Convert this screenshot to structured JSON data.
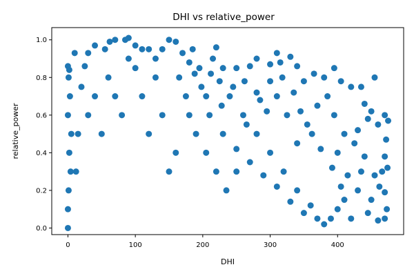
{
  "chart_data": {
    "type": "scatter",
    "title": "DHI vs relative_power",
    "xlabel": "DHI",
    "ylabel": "relative_power",
    "xlim": [
      -24,
      498
    ],
    "ylim": [
      -0.035,
      1.065
    ],
    "x_ticks": [
      0,
      100,
      200,
      300,
      400
    ],
    "y_ticks": [
      0.0,
      0.2,
      0.4,
      0.6,
      0.8,
      1.0
    ],
    "x_tick_labels": [
      "0",
      "100",
      "200",
      "300",
      "400"
    ],
    "y_tick_labels": [
      "0.0",
      "0.2",
      "0.4",
      "0.6",
      "0.8",
      "1.0"
    ],
    "grid": false,
    "marker_color": "#1f77b4",
    "series": [
      {
        "points": [
          [
            0,
            0.86
          ],
          [
            2,
            0.84
          ],
          [
            1,
            0.8
          ],
          [
            3,
            0.7
          ],
          [
            0,
            0.6
          ],
          [
            5,
            0.5
          ],
          [
            2,
            0.4
          ],
          [
            4,
            0.3
          ],
          [
            1,
            0.2
          ],
          [
            0,
            0.1
          ],
          [
            0,
            0.0
          ],
          [
            10,
            0.93
          ],
          [
            25,
            0.86
          ],
          [
            30,
            0.93
          ],
          [
            40,
            0.97
          ],
          [
            55,
            0.95
          ],
          [
            62,
            0.99
          ],
          [
            70,
            1.0
          ],
          [
            85,
            1.0
          ],
          [
            90,
            1.01
          ],
          [
            100,
            0.97
          ],
          [
            110,
            0.95
          ],
          [
            120,
            0.95
          ],
          [
            130,
            0.9
          ],
          [
            140,
            0.95
          ],
          [
            150,
            1.0
          ],
          [
            160,
            0.99
          ],
          [
            170,
            0.93
          ],
          [
            180,
            0.88
          ],
          [
            185,
            0.95
          ],
          [
            195,
            0.85
          ],
          [
            215,
            0.9
          ],
          [
            220,
            0.96
          ],
          [
            230,
            0.85
          ],
          [
            250,
            0.85
          ],
          [
            270,
            0.86
          ],
          [
            280,
            0.9
          ],
          [
            300,
            0.87
          ],
          [
            310,
            0.93
          ],
          [
            315,
            0.88
          ],
          [
            330,
            0.91
          ],
          [
            340,
            0.86
          ],
          [
            350,
            0.78
          ],
          [
            365,
            0.82
          ],
          [
            380,
            0.8
          ],
          [
            395,
            0.85
          ],
          [
            405,
            0.78
          ],
          [
            420,
            0.75
          ],
          [
            435,
            0.75
          ],
          [
            455,
            0.8
          ],
          [
            460,
            0.55
          ],
          [
            470,
            0.6
          ],
          [
            475,
            0.57
          ],
          [
            472,
            0.47
          ],
          [
            466,
            0.3
          ],
          [
            474,
            0.32
          ],
          [
            470,
            0.19
          ],
          [
            473,
            0.1
          ],
          [
            470,
            0.05
          ],
          [
            440,
            0.66
          ],
          [
            445,
            0.58
          ],
          [
            450,
            0.62
          ],
          [
            430,
            0.52
          ],
          [
            425,
            0.45
          ],
          [
            440,
            0.38
          ],
          [
            455,
            0.28
          ],
          [
            430,
            0.2
          ],
          [
            410,
            0.15
          ],
          [
            400,
            0.1
          ],
          [
            390,
            0.05
          ],
          [
            420,
            0.05
          ],
          [
            445,
            0.08
          ],
          [
            460,
            0.04
          ],
          [
            380,
            0.02
          ],
          [
            360,
            0.12
          ],
          [
            340,
            0.2
          ],
          [
            320,
            0.3
          ],
          [
            300,
            0.4
          ],
          [
            280,
            0.5
          ],
          [
            260,
            0.6
          ],
          [
            240,
            0.7
          ],
          [
            225,
            0.78
          ],
          [
            205,
            0.7
          ],
          [
            210,
            0.6
          ],
          [
            230,
            0.5
          ],
          [
            250,
            0.42
          ],
          [
            270,
            0.35
          ],
          [
            290,
            0.28
          ],
          [
            310,
            0.22
          ],
          [
            330,
            0.14
          ],
          [
            350,
            0.08
          ],
          [
            370,
            0.05
          ],
          [
            400,
            0.4
          ],
          [
            410,
            0.5
          ],
          [
            395,
            0.6
          ],
          [
            385,
            0.7
          ],
          [
            370,
            0.65
          ],
          [
            355,
            0.55
          ],
          [
            340,
            0.45
          ],
          [
            325,
            0.6
          ],
          [
            310,
            0.7
          ],
          [
            295,
            0.62
          ],
          [
            280,
            0.72
          ],
          [
            265,
            0.55
          ],
          [
            250,
            0.3
          ],
          [
            235,
            0.2
          ],
          [
            220,
            0.3
          ],
          [
            205,
            0.4
          ],
          [
            190,
            0.5
          ],
          [
            180,
            0.6
          ],
          [
            175,
            0.7
          ],
          [
            165,
            0.8
          ],
          [
            160,
            0.4
          ],
          [
            150,
            0.3
          ],
          [
            140,
            0.6
          ],
          [
            130,
            0.8
          ],
          [
            120,
            0.5
          ],
          [
            110,
            0.7
          ],
          [
            100,
            0.85
          ],
          [
            90,
            0.9
          ],
          [
            80,
            0.6
          ],
          [
            70,
            0.7
          ],
          [
            60,
            0.8
          ],
          [
            50,
            0.5
          ],
          [
            40,
            0.7
          ],
          [
            30,
            0.6
          ],
          [
            20,
            0.75
          ],
          [
            15,
            0.5
          ],
          [
            12,
            0.3
          ],
          [
            470,
            0.38
          ],
          [
            462,
            0.22
          ],
          [
            450,
            0.15
          ],
          [
            435,
            0.3
          ],
          [
            415,
            0.28
          ],
          [
            405,
            0.22
          ],
          [
            392,
            0.32
          ],
          [
            375,
            0.42
          ],
          [
            362,
            0.5
          ],
          [
            345,
            0.62
          ],
          [
            335,
            0.72
          ],
          [
            318,
            0.8
          ],
          [
            300,
            0.78
          ],
          [
            285,
            0.68
          ],
          [
            262,
            0.78
          ],
          [
            245,
            0.75
          ],
          [
            228,
            0.65
          ],
          [
            212,
            0.82
          ],
          [
            198,
            0.75
          ],
          [
            188,
            0.82
          ]
        ]
      }
    ]
  }
}
